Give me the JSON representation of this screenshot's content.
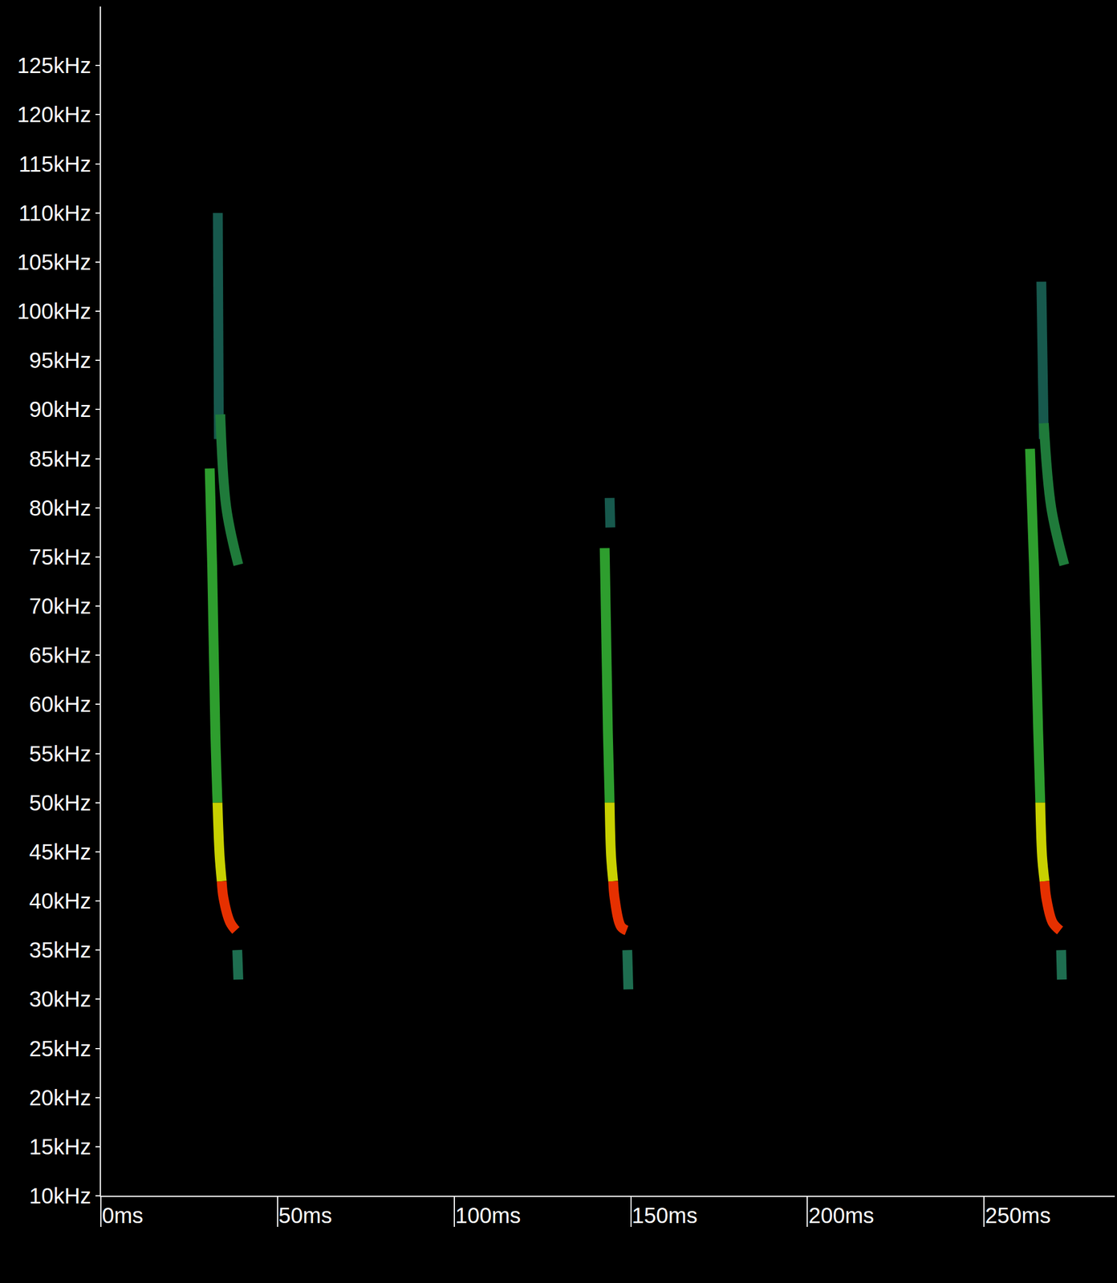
{
  "chart_data": {
    "type": "line",
    "xlim": [
      0,
      287
    ],
    "ylim": [
      10,
      131
    ],
    "xticks": [
      {
        "value": 0,
        "label": "0ms"
      },
      {
        "value": 50,
        "label": "50ms"
      },
      {
        "value": 100,
        "label": "100ms"
      },
      {
        "value": 150,
        "label": "150ms"
      },
      {
        "value": 200,
        "label": "200ms"
      },
      {
        "value": 250,
        "label": "250ms"
      }
    ],
    "yticks": [
      {
        "value": 10,
        "label": "10kHz"
      },
      {
        "value": 15,
        "label": "15kHz"
      },
      {
        "value": 20,
        "label": "20kHz"
      },
      {
        "value": 25,
        "label": "25kHz"
      },
      {
        "value": 30,
        "label": "30kHz"
      },
      {
        "value": 35,
        "label": "35kHz"
      },
      {
        "value": 40,
        "label": "40kHz"
      },
      {
        "value": 45,
        "label": "45kHz"
      },
      {
        "value": 50,
        "label": "50kHz"
      },
      {
        "value": 55,
        "label": "55kHz"
      },
      {
        "value": 60,
        "label": "60kHz"
      },
      {
        "value": 65,
        "label": "65kHz"
      },
      {
        "value": 70,
        "label": "70kHz"
      },
      {
        "value": 75,
        "label": "75kHz"
      },
      {
        "value": 80,
        "label": "80kHz"
      },
      {
        "value": 85,
        "label": "85kHz"
      },
      {
        "value": 90,
        "label": "90kHz"
      },
      {
        "value": 95,
        "label": "95kHz"
      },
      {
        "value": 100,
        "label": "100kHz"
      },
      {
        "value": 105,
        "label": "105kHz"
      },
      {
        "value": 110,
        "label": "110kHz"
      },
      {
        "value": 115,
        "label": "115kHz"
      },
      {
        "value": 120,
        "label": "120kHz"
      },
      {
        "value": 125,
        "label": "125kHz"
      }
    ],
    "grid": false,
    "series": [
      {
        "color": "#17594d",
        "x": [
          33.1,
          33.4
        ],
        "values": [
          110,
          87
        ]
      },
      {
        "color": "#1f7a3a",
        "x": [
          33.8,
          35.5,
          38.9
        ],
        "values": [
          89.5,
          80,
          74.2
        ]
      },
      {
        "color": "#2e9e2e",
        "x": [
          30.8,
          31.5,
          32.4,
          33.0
        ],
        "values": [
          84,
          74,
          57,
          50
        ]
      },
      {
        "color": "#c8d000",
        "x": [
          33.0,
          33.6,
          34.2
        ],
        "values": [
          50,
          44.6,
          42
        ]
      },
      {
        "color": "#e63000",
        "x": [
          34.2,
          34.7,
          36.6,
          38.2
        ],
        "values": [
          42,
          40.3,
          37.8,
          37
        ]
      },
      {
        "color": "#1e6e50",
        "x": [
          38.6,
          38.9
        ],
        "values": [
          35,
          32
        ]
      },
      {
        "color": "#17594d",
        "x": [
          144.0,
          144.2
        ],
        "values": [
          81,
          78
        ]
      },
      {
        "color": "#2e9e2e",
        "x": [
          142.6,
          143.5,
          144.0
        ],
        "values": [
          75.9,
          57.3,
          50
        ]
      },
      {
        "color": "#c8d000",
        "x": [
          144.0,
          144.4,
          145.0
        ],
        "values": [
          50,
          44.6,
          42
        ]
      },
      {
        "color": "#e63000",
        "x": [
          145.0,
          145.4,
          147.2,
          148.8
        ],
        "values": [
          42,
          40.3,
          37.4,
          37
        ]
      },
      {
        "color": "#1e6e50",
        "x": [
          149.0,
          149.3
        ],
        "values": [
          35,
          31
        ]
      },
      {
        "color": "#17594d",
        "x": [
          266.2,
          266.9
        ],
        "values": [
          103,
          87
        ]
      },
      {
        "color": "#1f7a3a",
        "x": [
          266.9,
          269.0,
          272.7
        ],
        "values": [
          88.6,
          80,
          74.2
        ]
      },
      {
        "color": "#2e9e2e",
        "x": [
          263.0,
          264.1,
          265.3,
          265.9
        ],
        "values": [
          86,
          74.2,
          57.3,
          50
        ]
      },
      {
        "color": "#c8d000",
        "x": [
          265.9,
          266.4,
          267.1
        ],
        "values": [
          50,
          44.6,
          42
        ]
      },
      {
        "color": "#e63000",
        "x": [
          267.1,
          267.6,
          269.4,
          271.5
        ],
        "values": [
          42,
          40.3,
          37.8,
          37
        ]
      },
      {
        "color": "#1e6e50",
        "x": [
          271.8,
          272.0
        ],
        "values": [
          35,
          32
        ]
      }
    ]
  }
}
